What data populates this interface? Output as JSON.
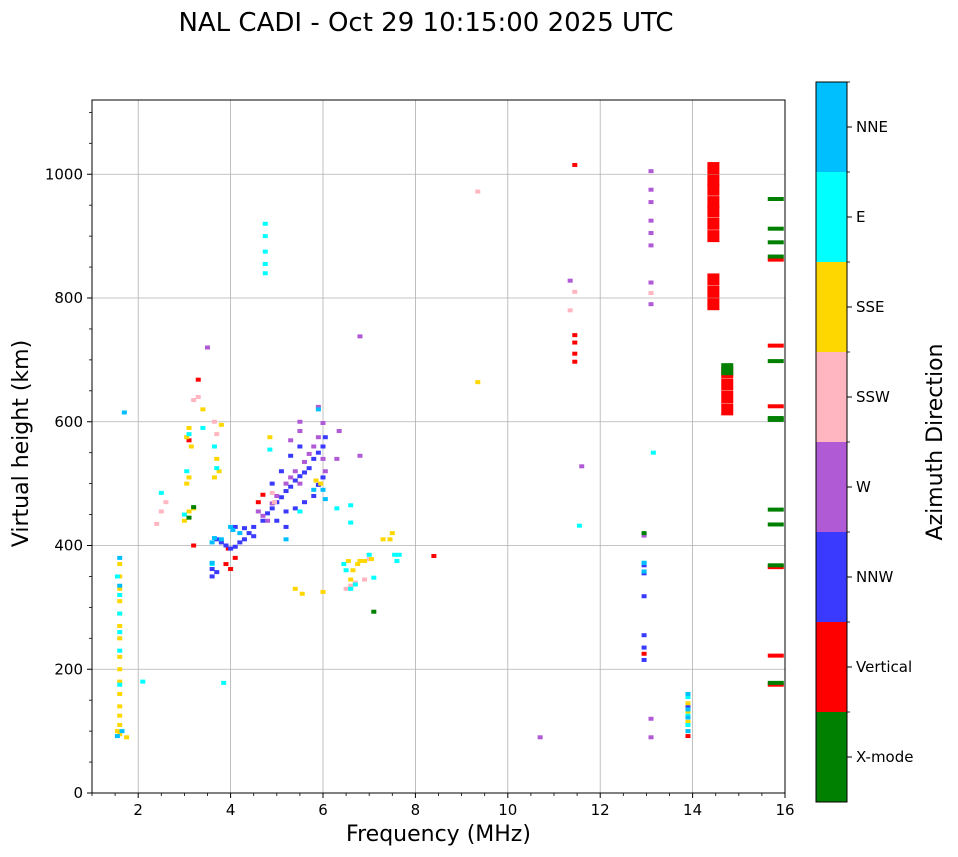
{
  "chart_data": {
    "type": "scatter",
    "title": "NAL CADI - Oct 29 10:15:00 2025 UTC",
    "xlabel": "Frequency (MHz)",
    "ylabel": "Virtual height (km)",
    "xlim": [
      1,
      16
    ],
    "ylim": [
      0,
      1120
    ],
    "xticks": [
      2,
      4,
      6,
      8,
      10,
      12,
      14,
      16
    ],
    "yticks": [
      0,
      200,
      400,
      600,
      800,
      1000
    ],
    "grid": true,
    "colorbar": {
      "title": "Azimuth Direction",
      "categories": [
        {
          "label": "X-mode",
          "color": "#008000"
        },
        {
          "label": "Vertical",
          "color": "#ff0000"
        },
        {
          "label": "NNW",
          "color": "#3a3aff"
        },
        {
          "label": "W",
          "color": "#b05ad6"
        },
        {
          "label": "SSW",
          "color": "#ffb6c1"
        },
        {
          "label": "SSE",
          "color": "#ffd700"
        },
        {
          "label": "E",
          "color": "#00ffff"
        },
        {
          "label": "NNE",
          "color": "#00bfff"
        }
      ]
    },
    "series": [
      {
        "name": "Vertical",
        "points": [
          [
            4.0,
            362
          ],
          [
            3.9,
            370
          ],
          [
            4.1,
            380
          ],
          [
            3.95,
            395
          ],
          [
            4.6,
            470
          ],
          [
            4.7,
            482
          ],
          [
            3.2,
            400
          ],
          [
            3.1,
            570
          ],
          [
            3.3,
            668
          ],
          [
            8.4,
            383
          ],
          [
            11.45,
            1015
          ],
          [
            11.45,
            740
          ],
          [
            11.45,
            728
          ],
          [
            11.45,
            710
          ],
          [
            11.45,
            697
          ],
          [
            14.45,
            1010
          ],
          [
            14.45,
            990
          ],
          [
            14.45,
            975
          ],
          [
            14.45,
            955
          ],
          [
            14.45,
            940
          ],
          [
            14.45,
            920
          ],
          [
            14.45,
            900
          ],
          [
            14.45,
            830
          ],
          [
            14.45,
            810
          ],
          [
            14.45,
            790
          ],
          [
            14.75,
            680
          ],
          [
            14.75,
            660
          ],
          [
            14.75,
            640
          ],
          [
            14.75,
            620
          ],
          [
            15.8,
            862
          ],
          [
            15.8,
            723
          ],
          [
            15.8,
            625
          ],
          [
            15.8,
            365
          ],
          [
            15.8,
            222
          ],
          [
            15.8,
            175
          ],
          [
            12.95,
            225
          ],
          [
            13.9,
            92
          ]
        ]
      },
      {
        "name": "NNW",
        "points": [
          [
            3.6,
            350
          ],
          [
            3.6,
            362
          ],
          [
            3.7,
            357
          ],
          [
            3.7,
            410
          ],
          [
            3.8,
            405
          ],
          [
            3.9,
            400
          ],
          [
            4.0,
            395
          ],
          [
            4.1,
            398
          ],
          [
            4.2,
            405
          ],
          [
            4.3,
            410
          ],
          [
            4.4,
            420
          ],
          [
            4.5,
            430
          ],
          [
            4.1,
            430
          ],
          [
            4.3,
            428
          ],
          [
            4.5,
            415
          ],
          [
            4.7,
            440
          ],
          [
            4.8,
            452
          ],
          [
            4.9,
            460
          ],
          [
            5.0,
            470
          ],
          [
            5.1,
            478
          ],
          [
            5.2,
            488
          ],
          [
            5.3,
            495
          ],
          [
            5.4,
            505
          ],
          [
            5.5,
            512
          ],
          [
            5.6,
            518
          ],
          [
            5.7,
            525
          ],
          [
            5.8,
            540
          ],
          [
            5.9,
            550
          ],
          [
            6.0,
            560
          ],
          [
            6.05,
            575
          ],
          [
            5.2,
            455
          ],
          [
            5.4,
            460
          ],
          [
            5.6,
            470
          ],
          [
            5.8,
            480
          ],
          [
            5.9,
            498
          ],
          [
            6.0,
            510
          ],
          [
            5.0,
            440
          ],
          [
            5.2,
            430
          ],
          [
            4.9,
            500
          ],
          [
            5.1,
            520
          ],
          [
            5.3,
            545
          ],
          [
            5.5,
            560
          ],
          [
            12.95,
            368
          ],
          [
            12.95,
            355
          ],
          [
            12.95,
            318
          ],
          [
            12.95,
            255
          ],
          [
            12.95,
            235
          ],
          [
            12.95,
            215
          ],
          [
            13.9,
            140
          ]
        ]
      },
      {
        "name": "W",
        "points": [
          [
            4.6,
            455
          ],
          [
            4.7,
            448
          ],
          [
            4.8,
            440
          ],
          [
            4.9,
            468
          ],
          [
            5.0,
            480
          ],
          [
            5.2,
            500
          ],
          [
            5.3,
            510
          ],
          [
            5.4,
            520
          ],
          [
            5.5,
            500
          ],
          [
            5.6,
            535
          ],
          [
            5.7,
            548
          ],
          [
            5.8,
            560
          ],
          [
            5.9,
            575
          ],
          [
            6.0,
            598
          ],
          [
            5.9,
            624
          ],
          [
            5.5,
            600
          ],
          [
            5.5,
            585
          ],
          [
            5.3,
            570
          ],
          [
            6.05,
            520
          ],
          [
            6.0,
            540
          ],
          [
            6.35,
            585
          ],
          [
            6.3,
            540
          ],
          [
            6.8,
            545
          ],
          [
            6.8,
            738
          ],
          [
            3.5,
            720
          ],
          [
            10.7,
            90
          ],
          [
            11.35,
            828
          ],
          [
            11.6,
            528
          ],
          [
            13.1,
            1005
          ],
          [
            13.1,
            975
          ],
          [
            13.1,
            955
          ],
          [
            13.1,
            925
          ],
          [
            13.1,
            905
          ],
          [
            13.1,
            885
          ],
          [
            13.1,
            825
          ],
          [
            13.1,
            790
          ],
          [
            12.95,
            416
          ],
          [
            13.1,
            90
          ],
          [
            13.1,
            120
          ]
        ]
      },
      {
        "name": "SSW",
        "points": [
          [
            2.6,
            470
          ],
          [
            2.4,
            435
          ],
          [
            3.7,
            580
          ],
          [
            3.3,
            640
          ],
          [
            3.2,
            635
          ],
          [
            4.9,
            485
          ],
          [
            4.95,
            470
          ],
          [
            6.5,
            330
          ],
          [
            6.6,
            335
          ],
          [
            6.7,
            340
          ],
          [
            6.9,
            345
          ],
          [
            7.0,
            378
          ],
          [
            9.35,
            972
          ],
          [
            11.35,
            780
          ],
          [
            11.45,
            810
          ],
          [
            13.1,
            808
          ],
          [
            3.65,
            600
          ],
          [
            2.5,
            455
          ]
        ]
      },
      {
        "name": "SSE",
        "points": [
          [
            1.55,
            100
          ],
          [
            1.6,
            95
          ],
          [
            1.6,
            110
          ],
          [
            1.6,
            125
          ],
          [
            1.6,
            140
          ],
          [
            1.6,
            160
          ],
          [
            1.6,
            180
          ],
          [
            1.6,
            200
          ],
          [
            1.6,
            220
          ],
          [
            1.6,
            250
          ],
          [
            1.6,
            270
          ],
          [
            1.6,
            290
          ],
          [
            1.6,
            310
          ],
          [
            1.6,
            330
          ],
          [
            1.6,
            350
          ],
          [
            1.6,
            370
          ],
          [
            1.75,
            90
          ],
          [
            3.0,
            440
          ],
          [
            3.1,
            455
          ],
          [
            3.05,
            500
          ],
          [
            3.1,
            510
          ],
          [
            3.1,
            590
          ],
          [
            3.05,
            575
          ],
          [
            3.15,
            560
          ],
          [
            3.7,
            540
          ],
          [
            3.8,
            595
          ],
          [
            3.75,
            520
          ],
          [
            3.65,
            510
          ],
          [
            3.2,
            460
          ],
          [
            4.85,
            575
          ],
          [
            5.85,
            505
          ],
          [
            5.95,
            500
          ],
          [
            6.55,
            375
          ],
          [
            6.75,
            370
          ],
          [
            6.65,
            360
          ],
          [
            6.6,
            345
          ],
          [
            6.8,
            375
          ],
          [
            6.9,
            375
          ],
          [
            7.05,
            378
          ],
          [
            7.3,
            410
          ],
          [
            7.5,
            420
          ],
          [
            7.45,
            410
          ],
          [
            5.55,
            322
          ],
          [
            6.0,
            325
          ],
          [
            5.4,
            330
          ],
          [
            9.35,
            664
          ],
          [
            13.9,
            100
          ],
          [
            13.9,
            115
          ],
          [
            13.9,
            130
          ],
          [
            13.9,
            145
          ],
          [
            3.4,
            620
          ]
        ]
      },
      {
        "name": "E",
        "points": [
          [
            1.55,
            350
          ],
          [
            1.6,
            320
          ],
          [
            1.6,
            290
          ],
          [
            1.6,
            260
          ],
          [
            1.6,
            230
          ],
          [
            1.6,
            175
          ],
          [
            2.5,
            485
          ],
          [
            3.1,
            580
          ],
          [
            3.0,
            450
          ],
          [
            3.05,
            520
          ],
          [
            3.7,
            525
          ],
          [
            3.65,
            560
          ],
          [
            3.4,
            590
          ],
          [
            3.6,
            370
          ],
          [
            3.85,
            178
          ],
          [
            2.1,
            180
          ],
          [
            4.75,
            920
          ],
          [
            4.75,
            900
          ],
          [
            4.75,
            875
          ],
          [
            4.75,
            855
          ],
          [
            4.75,
            840
          ],
          [
            4.85,
            555
          ],
          [
            5.5,
            455
          ],
          [
            6.3,
            460
          ],
          [
            6.6,
            465
          ],
          [
            6.6,
            437
          ],
          [
            6.45,
            370
          ],
          [
            6.5,
            360
          ],
          [
            6.6,
            330
          ],
          [
            6.7,
            337
          ],
          [
            7.0,
            385
          ],
          [
            7.1,
            348
          ],
          [
            7.55,
            385
          ],
          [
            7.65,
            385
          ],
          [
            7.6,
            375
          ],
          [
            11.55,
            432
          ],
          [
            13.15,
            550
          ],
          [
            12.95,
            372
          ],
          [
            13.9,
            110
          ],
          [
            13.9,
            125
          ],
          [
            13.9,
            155
          ]
        ]
      },
      {
        "name": "NNE",
        "points": [
          [
            1.55,
            92
          ],
          [
            1.65,
            100
          ],
          [
            1.6,
            380
          ],
          [
            1.6,
            335
          ],
          [
            1.7,
            615
          ],
          [
            3.6,
            405
          ],
          [
            3.65,
            412
          ],
          [
            3.8,
            410
          ],
          [
            3.6,
            372
          ],
          [
            4.05,
            425
          ],
          [
            4.2,
            420
          ],
          [
            4.0,
            430
          ],
          [
            5.2,
            410
          ],
          [
            5.8,
            490
          ],
          [
            6.05,
            475
          ],
          [
            6.0,
            490
          ],
          [
            5.9,
            620
          ],
          [
            12.95,
            358
          ],
          [
            12.95,
            372
          ],
          [
            13.9,
            100
          ],
          [
            13.9,
            122
          ],
          [
            13.9,
            135
          ],
          [
            13.9,
            160
          ]
        ]
      },
      {
        "name": "X-mode",
        "points": [
          [
            15.8,
            960
          ],
          [
            15.8,
            912
          ],
          [
            15.8,
            890
          ],
          [
            15.8,
            867
          ],
          [
            15.8,
            698
          ],
          [
            15.8,
            606
          ],
          [
            15.8,
            603
          ],
          [
            15.8,
            458
          ],
          [
            15.8,
            434
          ],
          [
            15.8,
            368
          ],
          [
            15.8,
            178
          ],
          [
            14.75,
            685
          ],
          [
            12.95,
            420
          ],
          [
            7.1,
            293
          ],
          [
            3.1,
            445
          ],
          [
            3.2,
            462
          ]
        ]
      }
    ]
  }
}
